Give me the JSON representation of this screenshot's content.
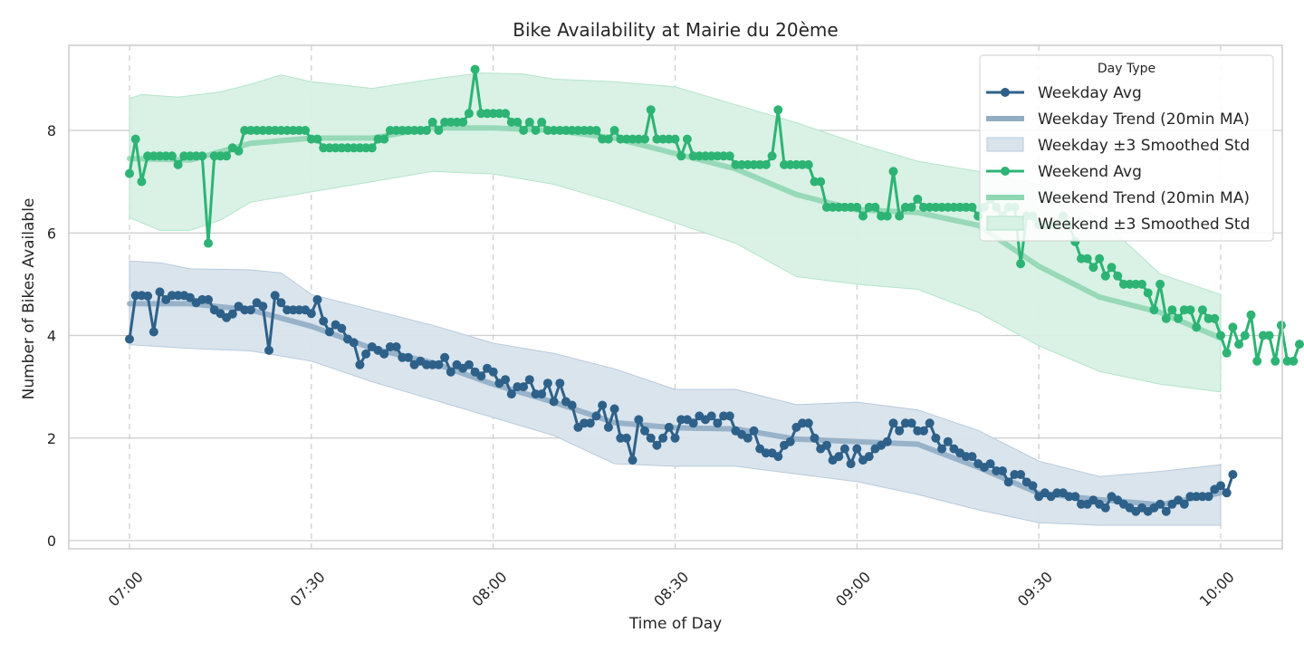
{
  "chart_data": {
    "type": "line",
    "title": "Bike Availability at Mairie du 20ème",
    "xlabel": "Time of Day",
    "ylabel": "Number of Bikes Available",
    "x_unit": "minutes_since_07:00",
    "xlim": [
      -3,
      183
    ],
    "ylim": [
      -0.2,
      9.6
    ],
    "x_ticks": [
      0,
      30,
      60,
      90,
      120,
      150,
      180
    ],
    "x_tick_labels": [
      "07:00",
      "07:30",
      "08:00",
      "08:30",
      "09:00",
      "09:30",
      "10:00"
    ],
    "y_ticks": [
      0,
      2,
      4,
      6,
      8
    ],
    "y_tick_labels": [
      "0",
      "2",
      "4",
      "6",
      "8"
    ],
    "grid": {
      "y": true,
      "x": "dashed"
    },
    "legend": {
      "title": "Day Type",
      "position": "top-right"
    },
    "colors": {
      "weekday": "#2e6189",
      "weekday_trend": "#90adc4",
      "weekday_band": "#d8e3ec",
      "weekday_band_edge": "#b8cadb",
      "weekend": "#2db474",
      "weekend_trend": "#8fd6b2",
      "weekend_band": "#d7f1e4",
      "weekend_band_edge": "#b4e4cb",
      "grid": "#cccccc",
      "text": "#262626"
    },
    "series": [
      {
        "name": "Weekday Avg",
        "key": "weekday",
        "x_start": 0,
        "x_step": 1,
        "avg": [
          3.93,
          4.78,
          4.78,
          4.77,
          4.07,
          4.85,
          4.7,
          4.78,
          4.78,
          4.78,
          4.74,
          4.64,
          4.7,
          4.7,
          4.5,
          4.43,
          4.35,
          4.42,
          4.57,
          4.5,
          4.5,
          4.64,
          4.57,
          3.71,
          4.78,
          4.64,
          4.5,
          4.5,
          4.5,
          4.5,
          4.43,
          4.7,
          4.28,
          4.07,
          4.21,
          4.14,
          3.93,
          3.86,
          3.43,
          3.64,
          3.78,
          3.71,
          3.64,
          3.78,
          3.78,
          3.57,
          3.57,
          3.43,
          3.5,
          3.43,
          3.43,
          3.43,
          3.57,
          3.29,
          3.43,
          3.36,
          3.43,
          3.29,
          3.21,
          3.36,
          3.29,
          3.07,
          3.14,
          2.86,
          3.0,
          3.0,
          3.14,
          2.86,
          2.86,
          3.07,
          2.71,
          3.07,
          2.71,
          2.64,
          2.21,
          2.29,
          2.29,
          2.43,
          2.64,
          2.21,
          2.57,
          2.0,
          2.0,
          1.57,
          2.36,
          2.14,
          2.0,
          1.86,
          2.0,
          2.21,
          2.0,
          2.36,
          2.36,
          2.29,
          2.43,
          2.36,
          2.43,
          2.29,
          2.43,
          2.43,
          2.14,
          2.07,
          2.0,
          2.14,
          1.79,
          1.71,
          1.71,
          1.64,
          1.86,
          1.93,
          2.21,
          2.29,
          2.29,
          2.0,
          1.79,
          1.86,
          1.57,
          1.64,
          1.79,
          1.5,
          1.79,
          1.57,
          1.64,
          1.79,
          1.86,
          1.93,
          2.29,
          2.14,
          2.29,
          2.29,
          2.14,
          2.14,
          2.29,
          2.0,
          1.79,
          1.93,
          1.79,
          1.71,
          1.64,
          1.64,
          1.5,
          1.43,
          1.5,
          1.36,
          1.36,
          1.14,
          1.29,
          1.29,
          1.14,
          1.07,
          0.86,
          0.93,
          0.86,
          0.93,
          0.93,
          0.86,
          0.86,
          0.71,
          0.71,
          0.79,
          0.71,
          0.64,
          0.86,
          0.79,
          0.71,
          0.64,
          0.57,
          0.64,
          0.57,
          0.64,
          0.71,
          0.57,
          0.71,
          0.79,
          0.71,
          0.86,
          0.86,
          0.86,
          0.86,
          1.0,
          1.07,
          0.93,
          1.29
        ],
        "trend": [
          [
            0,
            4.62
          ],
          [
            10,
            4.62
          ],
          [
            20,
            4.5
          ],
          [
            30,
            4.18
          ],
          [
            40,
            3.75
          ],
          [
            50,
            3.47
          ],
          [
            60,
            3.05
          ],
          [
            70,
            2.7
          ],
          [
            80,
            2.3
          ],
          [
            90,
            2.2
          ],
          [
            100,
            2.18
          ],
          [
            110,
            1.98
          ],
          [
            120,
            1.93
          ],
          [
            130,
            1.88
          ],
          [
            140,
            1.43
          ],
          [
            150,
            0.92
          ],
          [
            160,
            0.8
          ],
          [
            170,
            0.7
          ],
          [
            180,
            0.93
          ]
        ],
        "band_upper": [
          [
            0,
            5.45
          ],
          [
            5,
            5.42
          ],
          [
            10,
            5.3
          ],
          [
            20,
            5.28
          ],
          [
            25,
            5.22
          ],
          [
            30,
            4.8
          ],
          [
            40,
            4.5
          ],
          [
            50,
            4.2
          ],
          [
            60,
            3.85
          ],
          [
            70,
            3.65
          ],
          [
            80,
            3.35
          ],
          [
            90,
            2.95
          ],
          [
            100,
            2.95
          ],
          [
            110,
            2.65
          ],
          [
            120,
            2.7
          ],
          [
            130,
            2.55
          ],
          [
            140,
            2.15
          ],
          [
            150,
            1.55
          ],
          [
            160,
            1.25
          ],
          [
            170,
            1.35
          ],
          [
            180,
            1.48
          ]
        ],
        "band_lower": [
          [
            0,
            3.82
          ],
          [
            10,
            3.75
          ],
          [
            20,
            3.7
          ],
          [
            30,
            3.5
          ],
          [
            40,
            3.1
          ],
          [
            50,
            2.75
          ],
          [
            60,
            2.4
          ],
          [
            70,
            2.05
          ],
          [
            80,
            1.5
          ],
          [
            90,
            1.45
          ],
          [
            100,
            1.45
          ],
          [
            110,
            1.3
          ],
          [
            120,
            1.15
          ],
          [
            130,
            0.9
          ],
          [
            140,
            0.6
          ],
          [
            150,
            0.35
          ],
          [
            160,
            0.3
          ],
          [
            170,
            0.3
          ],
          [
            180,
            0.3
          ]
        ]
      },
      {
        "name": "Weekend Avg",
        "key": "weekend",
        "x_start": 0,
        "x_step": 1,
        "avg": [
          7.16,
          7.83,
          7.0,
          7.5,
          7.5,
          7.5,
          7.5,
          7.5,
          7.33,
          7.5,
          7.5,
          7.5,
          7.5,
          5.8,
          7.5,
          7.5,
          7.5,
          7.66,
          7.6,
          8.0,
          8.0,
          8.0,
          8.0,
          8.0,
          8.0,
          8.0,
          8.0,
          8.0,
          8.0,
          8.0,
          7.83,
          7.83,
          7.66,
          7.66,
          7.66,
          7.66,
          7.66,
          7.66,
          7.66,
          7.66,
          7.66,
          7.83,
          7.83,
          8.0,
          8.0,
          8.0,
          8.0,
          8.0,
          8.0,
          8.0,
          8.16,
          8.0,
          8.16,
          8.16,
          8.16,
          8.16,
          8.33,
          9.19,
          8.33,
          8.33,
          8.33,
          8.33,
          8.33,
          8.16,
          8.16,
          8.0,
          8.16,
          8.0,
          8.16,
          8.0,
          8.0,
          8.0,
          8.0,
          8.0,
          8.0,
          8.0,
          8.0,
          8.0,
          7.83,
          7.83,
          8.0,
          7.83,
          7.83,
          7.83,
          7.83,
          7.83,
          8.4,
          7.83,
          7.83,
          7.83,
          7.83,
          7.5,
          7.83,
          7.5,
          7.5,
          7.5,
          7.5,
          7.5,
          7.5,
          7.5,
          7.33,
          7.33,
          7.33,
          7.33,
          7.33,
          7.33,
          7.5,
          8.4,
          7.33,
          7.33,
          7.33,
          7.33,
          7.33,
          7.0,
          7.0,
          6.5,
          6.5,
          6.5,
          6.5,
          6.5,
          6.5,
          6.33,
          6.5,
          6.5,
          6.33,
          6.33,
          7.2,
          6.33,
          6.5,
          6.5,
          6.66,
          6.5,
          6.5,
          6.5,
          6.5,
          6.5,
          6.5,
          6.5,
          6.5,
          6.5,
          6.33,
          6.5,
          6.66,
          6.5,
          6.33,
          6.5,
          6.5,
          5.4,
          6.33,
          6.33,
          6.16,
          6.16,
          6.16,
          6.16,
          6.33,
          6.16,
          5.83,
          5.5,
          5.5,
          5.33,
          5.5,
          5.16,
          5.33,
          5.16,
          5.0,
          5.0,
          5.0,
          5.0,
          4.83,
          4.5,
          5.0,
          4.33,
          4.5,
          4.33,
          4.5,
          4.5,
          4.16,
          4.5,
          4.33,
          4.33,
          4.0,
          3.66,
          4.16,
          3.83,
          4.0,
          4.4,
          3.5,
          4.0,
          4.0,
          3.5,
          4.2,
          3.5,
          3.5,
          3.83
        ],
        "trend": [
          [
            0,
            7.45
          ],
          [
            10,
            7.42
          ],
          [
            20,
            7.75
          ],
          [
            30,
            7.85
          ],
          [
            40,
            7.85
          ],
          [
            50,
            8.05
          ],
          [
            60,
            8.05
          ],
          [
            70,
            8.0
          ],
          [
            80,
            7.85
          ],
          [
            90,
            7.55
          ],
          [
            100,
            7.25
          ],
          [
            110,
            6.75
          ],
          [
            120,
            6.45
          ],
          [
            130,
            6.4
          ],
          [
            140,
            6.15
          ],
          [
            150,
            5.35
          ],
          [
            160,
            4.75
          ],
          [
            170,
            4.45
          ],
          [
            180,
            3.95
          ]
        ],
        "band_upper": [
          [
            0,
            8.62
          ],
          [
            2,
            8.7
          ],
          [
            8,
            8.65
          ],
          [
            15,
            8.75
          ],
          [
            20,
            8.9
          ],
          [
            25,
            9.08
          ],
          [
            30,
            8.95
          ],
          [
            40,
            8.82
          ],
          [
            50,
            9.0
          ],
          [
            58,
            9.12
          ],
          [
            65,
            9.1
          ],
          [
            70,
            9.0
          ],
          [
            80,
            8.95
          ],
          [
            90,
            8.85
          ],
          [
            100,
            8.5
          ],
          [
            110,
            8.15
          ],
          [
            115,
            7.95
          ],
          [
            120,
            7.75
          ],
          [
            130,
            7.4
          ],
          [
            140,
            7.2
          ],
          [
            150,
            6.95
          ],
          [
            160,
            6.3
          ],
          [
            170,
            5.2
          ],
          [
            180,
            4.8
          ]
        ],
        "band_lower": [
          [
            0,
            6.3
          ],
          [
            5,
            6.05
          ],
          [
            10,
            6.05
          ],
          [
            15,
            6.25
          ],
          [
            20,
            6.6
          ],
          [
            30,
            6.8
          ],
          [
            40,
            7.0
          ],
          [
            50,
            7.2
          ],
          [
            60,
            7.15
          ],
          [
            70,
            6.95
          ],
          [
            80,
            6.6
          ],
          [
            90,
            6.2
          ],
          [
            100,
            5.8
          ],
          [
            110,
            5.15
          ],
          [
            120,
            5.0
          ],
          [
            130,
            4.9
          ],
          [
            140,
            4.45
          ],
          [
            150,
            3.8
          ],
          [
            160,
            3.3
          ],
          [
            170,
            3.05
          ],
          [
            180,
            2.9
          ]
        ]
      }
    ],
    "legend_entries": [
      {
        "label": "Weekday Avg",
        "kind": "line-marker",
        "color_key": "weekday"
      },
      {
        "label": "Weekday Trend (20min MA)",
        "kind": "thick-line",
        "color_key": "weekday_trend"
      },
      {
        "label": "Weekday ±3 Smoothed Std",
        "kind": "patch",
        "color_key": "weekday_band"
      },
      {
        "label": "Weekend Avg",
        "kind": "line-marker",
        "color_key": "weekend"
      },
      {
        "label": "Weekend Trend (20min MA)",
        "kind": "thick-line",
        "color_key": "weekend_trend"
      },
      {
        "label": "Weekend ±3 Smoothed Std",
        "kind": "patch",
        "color_key": "weekend_band"
      }
    ]
  }
}
